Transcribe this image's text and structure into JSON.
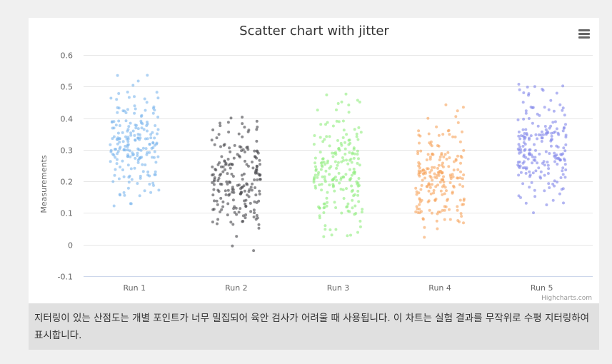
{
  "chart_data": {
    "type": "scatter",
    "title": "Scatter chart with jitter",
    "ylabel": "Measurements",
    "xlabel": "",
    "categories": [
      "Run 1",
      "Run 2",
      "Run 3",
      "Run 4",
      "Run 5"
    ],
    "ylim": [
      -0.1,
      0.6
    ],
    "yticks": [
      -0.1,
      0,
      0.1,
      0.2,
      0.3,
      0.4,
      0.5,
      0.6
    ],
    "ytick_labels": [
      "-0.1",
      "0",
      "0.1",
      "0.2",
      "0.3",
      "0.4",
      "0.5",
      "0.6"
    ],
    "grid": true,
    "legend": "none",
    "credits": "Highcharts.com",
    "series": [
      {
        "color": "#7cb5ec",
        "jitter_range": 0.48,
        "points_per_run": 200,
        "y_mean": 0.32,
        "y_min": 0.1,
        "y_max": 0.54
      },
      {
        "color": "#434348",
        "jitter_range": 0.48,
        "points_per_run": 200,
        "y_mean": 0.21,
        "y_min": -0.02,
        "y_max": 0.41
      },
      {
        "color": "#90ed7d",
        "jitter_range": 0.48,
        "points_per_run": 200,
        "y_mean": 0.24,
        "y_min": 0.01,
        "y_max": 0.48
      },
      {
        "color": "#f7a35c",
        "jitter_range": 0.48,
        "points_per_run": 200,
        "y_mean": 0.21,
        "y_min": -0.01,
        "y_max": 0.45
      },
      {
        "color": "#8085e9",
        "jitter_range": 0.48,
        "points_per_run": 200,
        "y_mean": 0.3,
        "y_min": 0.08,
        "y_max": 0.51
      }
    ]
  },
  "caption": "지터링이 있는 산점도는 개별 포인트가 너무 밀집되어 육안 검사가 어려울 때 사용됩니다. 이 차트는 실험 결과를 무작위로 수평 지터링하여 표시합니다."
}
